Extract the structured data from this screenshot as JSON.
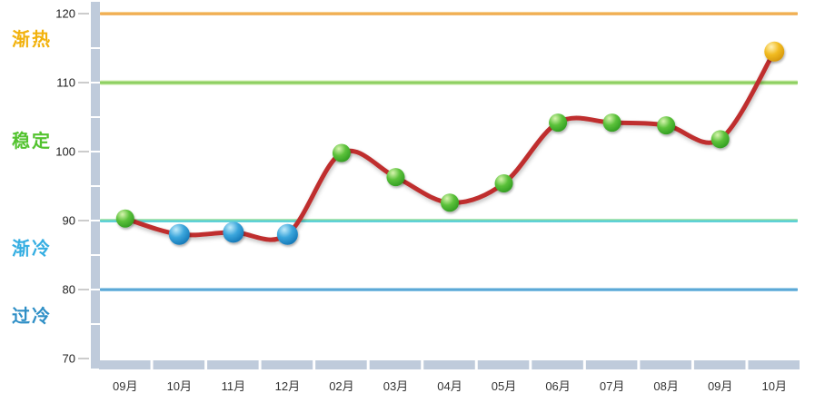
{
  "chart_data": {
    "type": "line",
    "title": "",
    "categories": [
      "09月",
      "10月",
      "11月",
      "12月",
      "02月",
      "03月",
      "04月",
      "05月",
      "06月",
      "07月",
      "08月",
      "09月",
      "10月"
    ],
    "series": [
      {
        "values": [
          90.3,
          88,
          88.3,
          88,
          99.8,
          96.3,
          92.6,
          95.4,
          104.2,
          104.2,
          103.8,
          101.8,
          114.5
        ],
        "marker_types": [
          "green",
          "blue",
          "blue",
          "blue",
          "green",
          "green",
          "green",
          "green",
          "green",
          "green",
          "green",
          "green",
          "yellow"
        ],
        "line_color": "#BF2F2F"
      }
    ],
    "ylim": [
      70,
      120
    ],
    "y_major_ticks": [
      70,
      80,
      90,
      100,
      110,
      120
    ],
    "y_minor_step": 5,
    "grid": false,
    "legend": "none",
    "threshold_lines": [
      {
        "value": 120,
        "key": "hot-line",
        "stops": [
          "#F8DFAE",
          "#EFA23A",
          "#F4C98C"
        ]
      },
      {
        "value": 110,
        "key": "stable-line",
        "stops": [
          "#DFF3C0",
          "#7CC84E",
          "#CDEDAC"
        ]
      },
      {
        "value": 90,
        "key": "cooling-line",
        "stops": [
          "#CDEDAC",
          "#58CFC2",
          "#66D4EA"
        ]
      },
      {
        "value": 80,
        "key": "cold-line",
        "stops": [
          "#C6E4F5",
          "#3E96CC",
          "#A2D3EE"
        ]
      }
    ],
    "zone_labels": [
      {
        "label": "渐热",
        "key": "hot",
        "color": "#F2B20D",
        "at": 116.3
      },
      {
        "label": "稳定",
        "key": "stable",
        "color": "#53C32F",
        "at": 101.6
      },
      {
        "label": "渐冷",
        "key": "cooling",
        "color": "#35AEE2",
        "at": 86.0
      },
      {
        "label": "过冷",
        "key": "cold",
        "color": "#2F8FC6",
        "at": 76.2
      }
    ],
    "marker_styles": {
      "green": {
        "stops": [
          "#D8F5B0",
          "#5BC13A",
          "#2E9A20"
        ],
        "radius": 10
      },
      "blue": {
        "stops": [
          "#C2ECFB",
          "#3BA6DC",
          "#1174B4"
        ],
        "radius": 11.5
      },
      "yellow": {
        "stops": [
          "#FFF2B8",
          "#F2BC22",
          "#D3940A"
        ],
        "radius": 11
      }
    },
    "axis_bar_color": "#BFCBDB",
    "tick_dash_color": "#CCCCCC",
    "y_tick_label_color": "#222222",
    "x_tick_label_color": "#333333"
  }
}
